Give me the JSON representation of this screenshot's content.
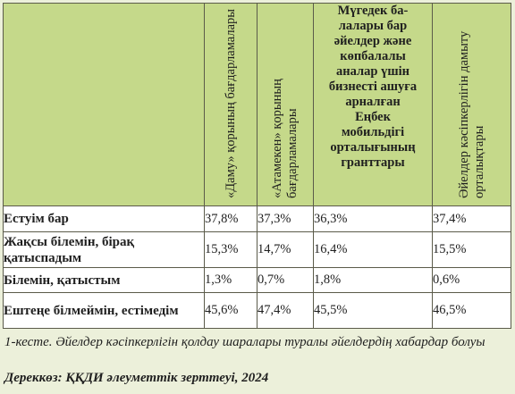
{
  "table": {
    "headers": [
      "«Даму» қорының бағдарламалары",
      "«Атамекен» қорының бағдарламалары",
      "Мүгедек ба-\nлалары бар\nәйелдер және\nкөпбалалы\nаналар үшін\nбизнесті ашуға\nарналған\nЕңбек\nмобильдігі\nорталығының\nгранттары",
      "Әйелдер кәсіпкерлігін дамыту орталықтары"
    ],
    "rows": [
      {
        "label": "Естуім бар",
        "values": [
          "37,8%",
          "37,3%",
          "36,3%",
          "37,4%"
        ]
      },
      {
        "label": "Жақсы білемін, бірақ қатыспадым",
        "values": [
          "15,3%",
          "14,7%",
          "16,4%",
          "15,5%"
        ]
      },
      {
        "label": "Білемін, қатыстым",
        "values": [
          "1,3%",
          "0,7%",
          "1,8%",
          "0,6%"
        ]
      },
      {
        "label": "Ештеңе білмеймін, естімедім",
        "values": [
          "45,6%",
          "47,4%",
          "45,5%",
          "46,5%"
        ]
      }
    ]
  },
  "caption": "1-кесте. Әйелдер кәсіпкерлігін қолдау шаралары туралы әйелдердің хабардар болуы",
  "source": "Дереккөз: ҚҚДИ әлеуметтік зерттеуі, 2024"
}
